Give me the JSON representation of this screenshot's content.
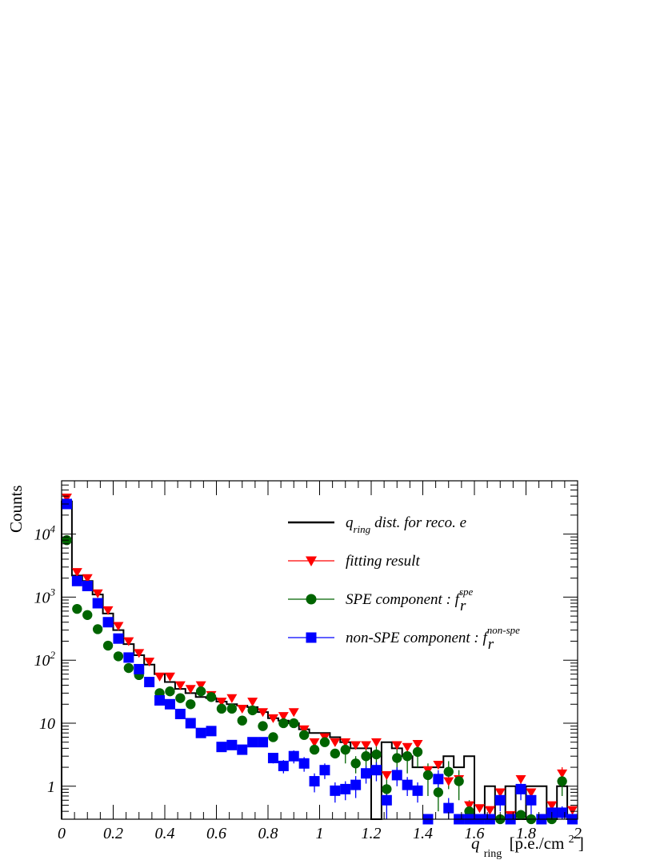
{
  "chart_data": {
    "type": "scatter",
    "ylabel": "Counts",
    "xlabel_main": "q",
    "xlabel_sub": "ring",
    "xlabel_unit": "[p.e./cm",
    "xlabel_unit_sup": "2",
    "xlabel_unit_close": "]",
    "xlim": [
      0,
      2
    ],
    "ylim": [
      0.3,
      70000
    ],
    "log_y": true,
    "grid": false,
    "legend_position": "top-right",
    "x_ticks": [
      {
        "value": 0,
        "label": "0"
      },
      {
        "value": 0.2,
        "label": "0.2"
      },
      {
        "value": 0.4,
        "label": "0.4"
      },
      {
        "value": 0.6,
        "label": "0.6"
      },
      {
        "value": 0.8,
        "label": "0.8"
      },
      {
        "value": 1.0,
        "label": "1"
      },
      {
        "value": 1.2,
        "label": "1.2"
      },
      {
        "value": 1.4,
        "label": "1.4"
      },
      {
        "value": 1.6,
        "label": "1.6"
      },
      {
        "value": 1.8,
        "label": "1.8"
      },
      {
        "value": 2.0,
        "label": "2"
      }
    ],
    "y_ticks": [
      {
        "value": 1,
        "label": "1"
      },
      {
        "value": 10,
        "label": "10"
      },
      {
        "value": 100,
        "label": "10",
        "sup": "2"
      },
      {
        "value": 1000,
        "label": "10",
        "sup": "3"
      },
      {
        "value": 10000,
        "label": "10",
        "sup": "4"
      }
    ],
    "legend": [
      {
        "key": "data",
        "text": "dist. for reco. e",
        "prefix": "q",
        "prefix_sub": "ring",
        "marker": "line",
        "color": "#000000"
      },
      {
        "key": "fit",
        "text": "fitting result",
        "marker": "triangle-down",
        "color": "#ff0000"
      },
      {
        "key": "spe",
        "text": "SPE component : f",
        "sub": "r",
        "sup": "spe",
        "marker": "circle",
        "color": "#006400"
      },
      {
        "key": "nonspe",
        "text": "non-SPE component : f",
        "sub": "r",
        "sup": "non-spe",
        "marker": "square",
        "color": "#0000ff"
      }
    ],
    "bin_edges": [
      0,
      0.04,
      0.08,
      0.12,
      0.16,
      0.2,
      0.24,
      0.28,
      0.32,
      0.36,
      0.4,
      0.44,
      0.48,
      0.52,
      0.56,
      0.6,
      0.64,
      0.68,
      0.72,
      0.76,
      0.8,
      0.84,
      0.88,
      0.92,
      0.96,
      1.0,
      1.04,
      1.08,
      1.12,
      1.16,
      1.2,
      1.24,
      1.28,
      1.32,
      1.36,
      1.4,
      1.44,
      1.48,
      1.52,
      1.56,
      1.6,
      1.64,
      1.68,
      1.72,
      1.76,
      1.8,
      1.84,
      1.88,
      1.92,
      1.96,
      2.0
    ],
    "series": [
      {
        "key": "data",
        "name": "q_ring dist. for reco. e",
        "kind": "histogram",
        "color": "#000000",
        "values": [
          33000,
          2200,
          1800,
          1100,
          550,
          300,
          180,
          120,
          85,
          60,
          45,
          35,
          30,
          26,
          25,
          22,
          20,
          19,
          18,
          15,
          12,
          11,
          10,
          8,
          7,
          7,
          6,
          5,
          4,
          4,
          0,
          5,
          4,
          3,
          2,
          2,
          2,
          3,
          2,
          3,
          0.2,
          1,
          0.2,
          1,
          0.2,
          1,
          1,
          0.2,
          1,
          0.2
        ]
      },
      {
        "key": "fit",
        "name": "fitting result",
        "kind": "markers",
        "color": "#ff0000",
        "x": [
          0.02,
          0.06,
          0.1,
          0.14,
          0.18,
          0.22,
          0.26,
          0.3,
          0.34,
          0.38,
          0.42,
          0.46,
          0.5,
          0.54,
          0.58,
          0.62,
          0.66,
          0.7,
          0.74,
          0.78,
          0.82,
          0.86,
          0.9,
          0.94,
          0.98,
          1.02,
          1.06,
          1.1,
          1.14,
          1.18,
          1.22,
          1.26,
          1.3,
          1.34,
          1.38,
          1.42,
          1.46,
          1.5,
          1.54,
          1.58,
          1.62,
          1.66,
          1.7,
          1.74,
          1.78,
          1.82,
          1.86,
          1.9,
          1.94,
          1.98
        ],
        "y": [
          38000,
          2500,
          2000,
          1150,
          620,
          350,
          200,
          130,
          95,
          55,
          55,
          40,
          35,
          40,
          28,
          22,
          25,
          17,
          22,
          15,
          12,
          13,
          15,
          8,
          5,
          6,
          5,
          5,
          4.5,
          4.5,
          5,
          1.5,
          4.5,
          4.2,
          4.7,
          1.8,
          2.2,
          1.2,
          1.3,
          0.5,
          0.45,
          0.42,
          0.8,
          0.35,
          1.3,
          0.8,
          0.3,
          0.5,
          1.6,
          0.42
        ],
        "y_err": [
          0,
          0,
          0,
          0,
          0,
          0,
          0,
          0,
          0,
          0,
          0,
          0,
          0,
          0,
          0,
          0,
          0,
          0,
          0,
          0,
          0,
          0,
          0,
          0,
          0,
          0,
          0,
          0,
          0,
          0,
          0,
          0,
          0,
          0,
          0,
          0,
          0,
          0,
          0,
          0,
          0,
          0,
          0,
          0,
          0,
          0,
          0,
          0,
          0.4,
          0
        ]
      },
      {
        "key": "spe",
        "name": "SPE component : f_r^spe",
        "kind": "markers",
        "color": "#006400",
        "x": [
          0.02,
          0.06,
          0.1,
          0.14,
          0.18,
          0.22,
          0.26,
          0.3,
          0.34,
          0.38,
          0.42,
          0.46,
          0.5,
          0.54,
          0.58,
          0.62,
          0.66,
          0.7,
          0.74,
          0.78,
          0.82,
          0.86,
          0.9,
          0.94,
          0.98,
          1.02,
          1.06,
          1.1,
          1.14,
          1.18,
          1.22,
          1.26,
          1.3,
          1.34,
          1.38,
          1.42,
          1.46,
          1.5,
          1.54,
          1.58,
          1.62,
          1.66,
          1.7,
          1.74,
          1.78,
          1.82,
          1.86,
          1.9,
          1.94,
          1.98
        ],
        "y": [
          8000,
          650,
          520,
          310,
          170,
          115,
          75,
          58,
          45,
          30,
          32,
          25,
          20,
          32,
          26,
          17,
          17,
          11,
          16,
          9,
          6,
          10,
          10,
          6.5,
          3.8,
          5,
          3.3,
          3.8,
          2.3,
          3,
          3.2,
          0.9,
          2.8,
          3,
          3.5,
          1.5,
          0.8,
          1.7,
          1.2,
          0.4,
          0.3,
          0.3,
          0.3,
          0.3,
          0.35,
          0.3,
          0.3,
          0.3,
          1.2,
          0.3
        ],
        "y_err": [
          0,
          0,
          0,
          0,
          0,
          0,
          0,
          0,
          0,
          0,
          0,
          0,
          0,
          0,
          0,
          0,
          0,
          0,
          0,
          0,
          0,
          0,
          0,
          0,
          0,
          0,
          0,
          1.5,
          0.7,
          1.2,
          1.5,
          0.4,
          1.3,
          1.4,
          1.5,
          0.8,
          0.4,
          0.8,
          0.6,
          0.2,
          0,
          0,
          0,
          0,
          0,
          0,
          0,
          0,
          0.5,
          0
        ]
      },
      {
        "key": "nonspe",
        "name": "non-SPE component : f_r^non-spe",
        "kind": "markers",
        "color": "#0000ff",
        "x": [
          0.02,
          0.06,
          0.1,
          0.14,
          0.18,
          0.22,
          0.26,
          0.3,
          0.34,
          0.38,
          0.42,
          0.46,
          0.5,
          0.54,
          0.58,
          0.62,
          0.66,
          0.7,
          0.74,
          0.78,
          0.82,
          0.86,
          0.9,
          0.94,
          0.98,
          1.02,
          1.06,
          1.1,
          1.14,
          1.18,
          1.22,
          1.26,
          1.3,
          1.34,
          1.38,
          1.42,
          1.46,
          1.5,
          1.54,
          1.58,
          1.62,
          1.66,
          1.7,
          1.74,
          1.78,
          1.82,
          1.86,
          1.9,
          1.94,
          1.98
        ],
        "y": [
          30000,
          1800,
          1500,
          800,
          400,
          220,
          110,
          72,
          45,
          23,
          20,
          14,
          10,
          7,
          7.5,
          4.2,
          4.5,
          3.8,
          5,
          5,
          2.8,
          2.1,
          3,
          2.3,
          1.2,
          1.8,
          0.85,
          0.9,
          1.05,
          1.6,
          1.8,
          0.6,
          1.5,
          1.05,
          0.85,
          0.3,
          1.3,
          0.45,
          0.3,
          0.3,
          0.3,
          0.3,
          0.6,
          0.3,
          0.9,
          0.6,
          0.3,
          0.38,
          0.38,
          0.3
        ],
        "y_err": [
          0,
          0,
          0,
          0,
          0,
          0,
          0,
          0,
          0,
          0,
          0,
          0,
          0,
          0,
          0,
          0,
          0,
          0,
          0,
          0,
          0.5,
          0.5,
          0.7,
          0.6,
          0.4,
          0.5,
          0.3,
          0.3,
          0.4,
          0.5,
          0.6,
          0.3,
          0.5,
          0.35,
          0.3,
          0,
          0.5,
          0.2,
          0,
          0,
          0,
          0,
          0.2,
          0,
          0.3,
          0.3,
          0,
          0.1,
          0.1,
          0
        ]
      }
    ]
  }
}
